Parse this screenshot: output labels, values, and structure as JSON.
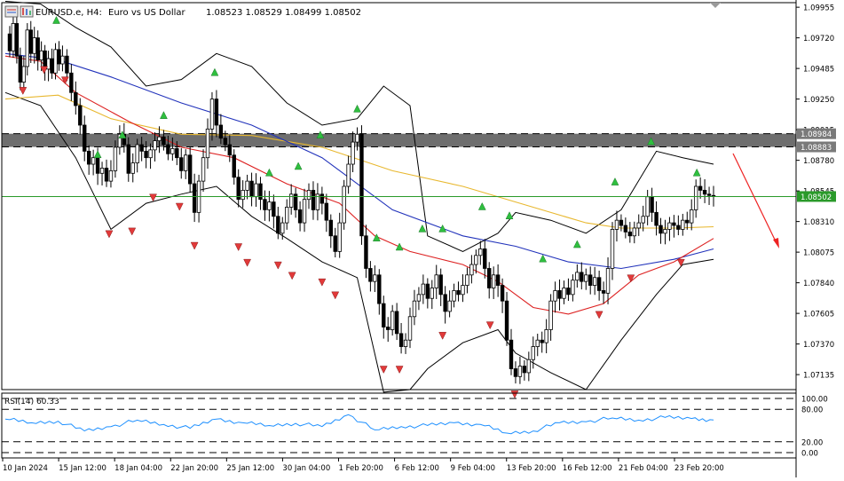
{
  "header": {
    "symbol": "EURUSD.e, H4:",
    "description": "Euro vs US Dollar",
    "ohlc": "1.08523 1.08529 1.08499 1.08502"
  },
  "rsi_label": "RSI(14) 60.33",
  "chart_data": {
    "type": "candlestick",
    "symbol": "EURUSD.e",
    "timeframe": "H4",
    "x_tick_labels": [
      "10 Jan 2024",
      "15 Jan 12:00",
      "18 Jan 04:00",
      "22 Jan 20:00",
      "25 Jan 12:00",
      "30 Jan 04:00",
      "1 Feb 20:00",
      "6 Feb 12:00",
      "9 Feb 04:00",
      "13 Feb 20:00",
      "16 Feb 12:00",
      "21 Feb 04:00",
      "23 Feb 20:00"
    ],
    "y_tick_labels": [
      "1.09955",
      "1.09720",
      "1.09485",
      "1.09250",
      "1.09015",
      "1.08780",
      "1.08545",
      "1.08310",
      "1.08075",
      "1.07840",
      "1.07605",
      "1.07370",
      "1.07135"
    ],
    "ylim": [
      1.0702,
      1.0999
    ],
    "current_price": "1.08502",
    "zone_labels": [
      "1.08984",
      "1.08883"
    ],
    "zone": [
      1.08883,
      1.08984
    ],
    "dashed_levels": [
      1.08984,
      1.08883
    ],
    "price_path": [
      [
        0,
        1.0975
      ],
      [
        5,
        1.0962
      ],
      [
        9,
        1.0983
      ],
      [
        13,
        1.0958
      ],
      [
        17,
        1.0938
      ],
      [
        21,
        1.095
      ],
      [
        25,
        1.0978
      ],
      [
        29,
        1.096
      ],
      [
        33,
        1.0972
      ],
      [
        37,
        1.0955
      ],
      [
        41,
        1.0962
      ],
      [
        45,
        1.0948
      ],
      [
        49,
        1.0956
      ],
      [
        53,
        1.0945
      ],
      [
        57,
        1.0963
      ],
      [
        61,
        1.0952
      ],
      [
        65,
        1.0958
      ],
      [
        70,
        1.0945
      ],
      [
        75,
        1.093
      ],
      [
        80,
        1.092
      ],
      [
        85,
        1.0905
      ],
      [
        90,
        1.0885
      ],
      [
        95,
        1.0875
      ],
      [
        100,
        1.088
      ],
      [
        105,
        1.0868
      ],
      [
        110,
        1.0872
      ],
      [
        115,
        1.0862
      ],
      [
        120,
        1.087
      ],
      [
        125,
        1.0888
      ],
      [
        130,
        1.0898
      ],
      [
        135,
        1.089
      ],
      [
        140,
        1.0868
      ],
      [
        145,
        1.0876
      ],
      [
        150,
        1.089
      ],
      [
        155,
        1.0885
      ],
      [
        160,
        1.088
      ],
      [
        165,
        1.0886
      ],
      [
        170,
        1.0893
      ],
      [
        175,
        1.0896
      ],
      [
        180,
        1.089
      ],
      [
        185,
        1.0883
      ],
      [
        190,
        1.0887
      ],
      [
        195,
        1.088
      ],
      [
        200,
        1.087
      ],
      [
        205,
        1.0882
      ],
      [
        210,
        1.086
      ],
      [
        215,
        1.0838
      ],
      [
        220,
        1.0862
      ],
      [
        225,
        1.088
      ],
      [
        230,
        1.0902
      ],
      [
        235,
        1.0925
      ],
      [
        240,
        1.0905
      ],
      [
        245,
        1.0895
      ],
      [
        250,
        1.089
      ],
      [
        255,
        1.0882
      ],
      [
        260,
        1.0865
      ],
      [
        265,
        1.0848
      ],
      [
        270,
        1.0855
      ],
      [
        275,
        1.0862
      ],
      [
        280,
        1.085
      ],
      [
        285,
        1.086
      ],
      [
        290,
        1.0848
      ],
      [
        295,
        1.084
      ],
      [
        300,
        1.0846
      ],
      [
        305,
        1.0835
      ],
      [
        310,
        1.0822
      ],
      [
        315,
        1.083
      ],
      [
        320,
        1.0842
      ],
      [
        325,
        1.0852
      ],
      [
        330,
        1.084
      ],
      [
        335,
        1.083
      ],
      [
        340,
        1.0848
      ],
      [
        345,
        1.0855
      ],
      [
        350,
        1.084
      ],
      [
        355,
        1.0852
      ],
      [
        360,
        1.0845
      ],
      [
        365,
        1.0832
      ],
      [
        370,
        1.082
      ],
      [
        375,
        1.0808
      ],
      [
        380,
        1.083
      ],
      [
        385,
        1.0858
      ],
      [
        390,
        1.0875
      ],
      [
        395,
        1.0892
      ],
      [
        400,
        1.0898
      ],
      [
        405,
        1.082
      ],
      [
        410,
        1.0795
      ],
      [
        415,
        1.0785
      ],
      [
        420,
        1.079
      ],
      [
        425,
        1.0768
      ],
      [
        430,
        1.075
      ],
      [
        435,
        1.0748
      ],
      [
        440,
        1.0762
      ],
      [
        445,
        1.0745
      ],
      [
        450,
        1.0735
      ],
      [
        455,
        1.074
      ],
      [
        460,
        1.0758
      ],
      [
        465,
        1.077
      ],
      [
        470,
        1.0775
      ],
      [
        475,
        1.0783
      ],
      [
        480,
        1.0772
      ],
      [
        485,
        1.078
      ],
      [
        490,
        1.079
      ],
      [
        495,
        1.0775
      ],
      [
        500,
        1.0762
      ],
      [
        505,
        1.077
      ],
      [
        510,
        1.0778
      ],
      [
        515,
        1.0775
      ],
      [
        520,
        1.0782
      ],
      [
        525,
        1.079
      ],
      [
        530,
        1.0798
      ],
      [
        535,
        1.0805
      ],
      [
        540,
        1.081
      ],
      [
        545,
        1.0795
      ],
      [
        550,
        1.078
      ],
      [
        555,
        1.079
      ],
      [
        560,
        1.0782
      ],
      [
        565,
        1.077
      ],
      [
        570,
        1.074
      ],
      [
        575,
        1.0718
      ],
      [
        580,
        1.0712
      ],
      [
        585,
        1.072
      ],
      [
        590,
        1.0715
      ],
      [
        595,
        1.0725
      ],
      [
        600,
        1.0735
      ],
      [
        605,
        1.074
      ],
      [
        610,
        1.0738
      ],
      [
        615,
        1.0748
      ],
      [
        620,
        1.077
      ],
      [
        625,
        1.0778
      ],
      [
        630,
        1.0772
      ],
      [
        635,
        1.078
      ],
      [
        640,
        1.0775
      ],
      [
        645,
        1.0786
      ],
      [
        650,
        1.0792
      ],
      [
        655,
        1.0785
      ],
      [
        660,
        1.079
      ],
      [
        665,
        1.0782
      ],
      [
        670,
        1.0788
      ],
      [
        675,
        1.0778
      ],
      [
        680,
        1.0776
      ],
      [
        685,
        1.0795
      ],
      [
        690,
        1.0825
      ],
      [
        695,
        1.0832
      ],
      [
        700,
        1.0828
      ],
      [
        705,
        1.0823
      ],
      [
        710,
        1.082
      ],
      [
        715,
        1.0826
      ],
      [
        720,
        1.083
      ],
      [
        725,
        1.0835
      ],
      [
        730,
        1.085
      ],
      [
        735,
        1.0838
      ],
      [
        740,
        1.0828
      ],
      [
        745,
        1.0822
      ],
      [
        750,
        1.0825
      ],
      [
        755,
        1.083
      ],
      [
        760,
        1.0828
      ],
      [
        765,
        1.0825
      ],
      [
        770,
        1.0832
      ],
      [
        775,
        1.083
      ],
      [
        780,
        1.084
      ],
      [
        785,
        1.0858
      ],
      [
        790,
        1.0855
      ],
      [
        795,
        1.0852
      ],
      [
        800,
        1.0851
      ],
      [
        805,
        1.08502
      ]
    ],
    "ma_yellow": [
      [
        0,
        1.0925
      ],
      [
        60,
        1.0928
      ],
      [
        120,
        1.091
      ],
      [
        200,
        1.0898
      ],
      [
        280,
        1.0897
      ],
      [
        360,
        1.0888
      ],
      [
        440,
        1.087
      ],
      [
        520,
        1.0858
      ],
      [
        600,
        1.0842
      ],
      [
        660,
        1.083
      ],
      [
        700,
        1.0826
      ],
      [
        760,
        1.0826
      ],
      [
        805,
        1.0827
      ]
    ],
    "ma_blue": [
      [
        0,
        1.096
      ],
      [
        60,
        1.0955
      ],
      [
        120,
        1.0942
      ],
      [
        200,
        1.0922
      ],
      [
        280,
        1.0905
      ],
      [
        360,
        1.088
      ],
      [
        440,
        1.084
      ],
      [
        520,
        1.082
      ],
      [
        580,
        1.0812
      ],
      [
        640,
        1.08
      ],
      [
        700,
        1.0795
      ],
      [
        760,
        1.0802
      ],
      [
        805,
        1.081
      ]
    ],
    "ma_red": [
      [
        0,
        1.0958
      ],
      [
        40,
        1.0954
      ],
      [
        80,
        1.093
      ],
      [
        140,
        1.0908
      ],
      [
        200,
        1.0888
      ],
      [
        260,
        1.088
      ],
      [
        320,
        1.086
      ],
      [
        380,
        1.0845
      ],
      [
        420,
        1.082
      ],
      [
        460,
        1.0808
      ],
      [
        520,
        1.0798
      ],
      [
        560,
        1.0785
      ],
      [
        600,
        1.0765
      ],
      [
        640,
        1.076
      ],
      [
        680,
        1.0768
      ],
      [
        720,
        1.079
      ],
      [
        760,
        1.08
      ],
      [
        805,
        1.0818
      ]
    ],
    "bb_upper": [
      [
        0,
        1.1
      ],
      [
        40,
        1.0998
      ],
      [
        80,
        1.098
      ],
      [
        120,
        1.0965
      ],
      [
        160,
        1.0935
      ],
      [
        200,
        1.094
      ],
      [
        240,
        1.096
      ],
      [
        280,
        1.095
      ],
      [
        320,
        1.0922
      ],
      [
        360,
        1.0905
      ],
      [
        400,
        1.091
      ],
      [
        430,
        1.0935
      ],
      [
        460,
        1.092
      ],
      [
        480,
        1.082
      ],
      [
        520,
        1.0808
      ],
      [
        560,
        1.0822
      ],
      [
        580,
        1.0838
      ],
      [
        620,
        1.0832
      ],
      [
        660,
        1.0822
      ],
      [
        700,
        1.084
      ],
      [
        740,
        1.0885
      ],
      [
        770,
        1.088
      ],
      [
        805,
        1.0875
      ]
    ],
    "bb_lower": [
      [
        0,
        1.093
      ],
      [
        40,
        1.092
      ],
      [
        80,
        1.088
      ],
      [
        120,
        1.0825
      ],
      [
        160,
        1.0845
      ],
      [
        200,
        1.0852
      ],
      [
        240,
        1.0858
      ],
      [
        280,
        1.0835
      ],
      [
        320,
        1.0818
      ],
      [
        360,
        1.08
      ],
      [
        400,
        1.0788
      ],
      [
        430,
        1.07
      ],
      [
        460,
        1.0702
      ],
      [
        480,
        1.0718
      ],
      [
        520,
        1.0738
      ],
      [
        560,
        1.0748
      ],
      [
        580,
        1.073
      ],
      [
        620,
        1.0715
      ],
      [
        660,
        1.0702
      ],
      [
        700,
        1.074
      ],
      [
        740,
        1.0775
      ],
      [
        770,
        1.0798
      ],
      [
        805,
        1.0802
      ]
    ],
    "rsi_levels": [
      100,
      80,
      20,
      0
    ],
    "rsi_level_labels": [
      "100.00",
      "80.00",
      "20.00",
      "0.00"
    ],
    "rsi_values": [
      [
        0,
        62
      ],
      [
        30,
        55
      ],
      [
        60,
        58
      ],
      [
        90,
        40
      ],
      [
        120,
        48
      ],
      [
        150,
        60
      ],
      [
        180,
        52
      ],
      [
        210,
        45
      ],
      [
        240,
        62
      ],
      [
        270,
        55
      ],
      [
        300,
        50
      ],
      [
        330,
        54
      ],
      [
        360,
        48
      ],
      [
        390,
        70
      ],
      [
        420,
        42
      ],
      [
        450,
        48
      ],
      [
        480,
        50
      ],
      [
        510,
        55
      ],
      [
        540,
        52
      ],
      [
        570,
        36
      ],
      [
        600,
        40
      ],
      [
        630,
        55
      ],
      [
        660,
        57
      ],
      [
        690,
        64
      ],
      [
        720,
        60
      ],
      [
        750,
        65
      ],
      [
        780,
        63
      ],
      [
        805,
        60.33
      ]
    ],
    "up_arrows": [
      [
        58,
        1.0985
      ],
      [
        105,
        1.0882
      ],
      [
        133,
        1.0897
      ],
      [
        180,
        1.0912
      ],
      [
        238,
        1.0945
      ],
      [
        300,
        1.0868
      ],
      [
        333,
        1.0873
      ],
      [
        358,
        1.0897
      ],
      [
        400,
        1.0917
      ],
      [
        422,
        1.0818
      ],
      [
        448,
        1.0811
      ],
      [
        474,
        1.0825
      ],
      [
        497,
        1.0825
      ],
      [
        542,
        1.0842
      ],
      [
        573,
        1.0835
      ],
      [
        611,
        1.0802
      ],
      [
        650,
        1.0813
      ],
      [
        693,
        1.0861
      ],
      [
        734,
        1.0892
      ],
      [
        786,
        1.0868
      ]
    ],
    "down_arrows": [
      [
        20,
        1.0932
      ],
      [
        44,
        1.0948
      ],
      [
        68,
        1.094
      ],
      [
        118,
        1.0822
      ],
      [
        144,
        1.0824
      ],
      [
        168,
        1.085
      ],
      [
        198,
        1.0843
      ],
      [
        215,
        1.0813
      ],
      [
        265,
        1.0812
      ],
      [
        275,
        1.08
      ],
      [
        310,
        1.0798
      ],
      [
        326,
        1.079
      ],
      [
        360,
        1.0785
      ],
      [
        375,
        1.0775
      ],
      [
        430,
        1.0718
      ],
      [
        448,
        1.0718
      ],
      [
        497,
        1.0744
      ],
      [
        551,
        1.0752
      ],
      [
        579,
        1.0699
      ],
      [
        675,
        1.076
      ],
      [
        711,
        1.0788
      ],
      [
        768,
        1.08
      ]
    ]
  }
}
